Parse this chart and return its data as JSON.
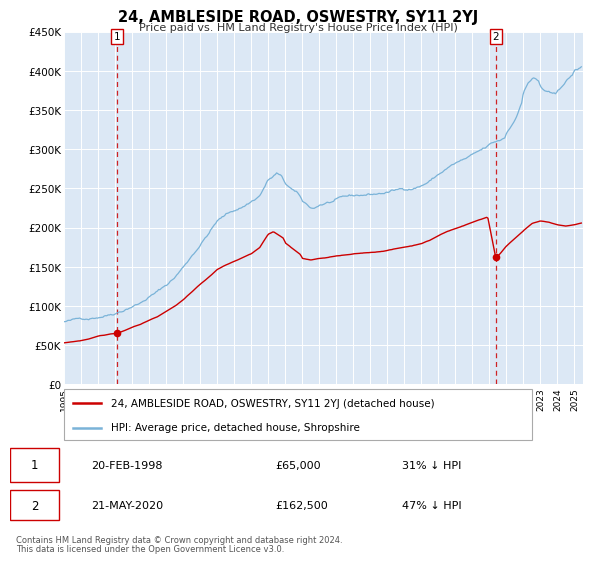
{
  "title": "24, AMBLESIDE ROAD, OSWESTRY, SY11 2YJ",
  "subtitle": "Price paid vs. HM Land Registry's House Price Index (HPI)",
  "ylim": [
    0,
    450000
  ],
  "yticks": [
    0,
    50000,
    100000,
    150000,
    200000,
    250000,
    300000,
    350000,
    400000,
    450000
  ],
  "ytick_labels": [
    "£0",
    "£50K",
    "£100K",
    "£150K",
    "£200K",
    "£250K",
    "£300K",
    "£350K",
    "£400K",
    "£450K"
  ],
  "xlim_start": 1995.0,
  "xlim_end": 2025.5,
  "xtick_years": [
    1995,
    1996,
    1997,
    1998,
    1999,
    2000,
    2001,
    2002,
    2003,
    2004,
    2005,
    2006,
    2007,
    2008,
    2009,
    2010,
    2011,
    2012,
    2013,
    2014,
    2015,
    2016,
    2017,
    2018,
    2019,
    2020,
    2021,
    2022,
    2023,
    2024,
    2025
  ],
  "hpi_color": "#7ab3d8",
  "property_color": "#cc0000",
  "background_color": "#dce8f5",
  "grid_color": "#ffffff",
  "sale1_date": 1998.13,
  "sale1_price": 65000,
  "sale2_date": 2020.38,
  "sale2_price": 162500,
  "sale1_date_str": "20-FEB-1998",
  "sale2_date_str": "21-MAY-2020",
  "sale1_hpi_pct": "31% ↓ HPI",
  "sale2_hpi_pct": "47% ↓ HPI",
  "legend_property": "24, AMBLESIDE ROAD, OSWESTRY, SY11 2YJ (detached house)",
  "legend_hpi": "HPI: Average price, detached house, Shropshire",
  "footer1": "Contains HM Land Registry data © Crown copyright and database right 2024.",
  "footer2": "This data is licensed under the Open Government Licence v3.0."
}
